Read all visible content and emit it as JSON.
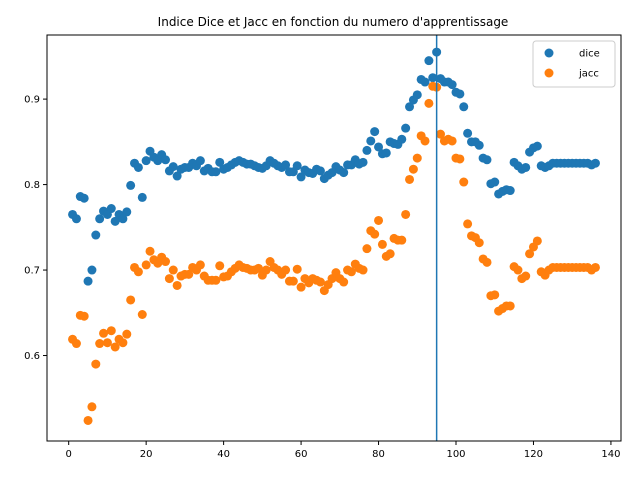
{
  "chart_data": {
    "type": "scatter",
    "title": "Indice Dice et Jacc en fonction du numero d'apprentissage",
    "xlabel": "",
    "ylabel": "",
    "xlim": [
      -5.6,
      142.6
    ],
    "ylim": [
      0.5,
      0.975
    ],
    "xticks": [
      0,
      20,
      40,
      60,
      80,
      100,
      120,
      140
    ],
    "yticks": [
      0.6,
      0.7,
      0.8,
      0.9
    ],
    "grid": false,
    "legend_position": "top-right",
    "vline_x": 95,
    "series": [
      {
        "name": "dice",
        "color": "#1f77b4",
        "x": [
          1,
          2,
          3,
          4,
          5,
          6,
          7,
          8,
          9,
          10,
          11,
          12,
          13,
          14,
          15,
          16,
          17,
          18,
          19,
          20,
          21,
          22,
          23,
          24,
          25,
          26,
          27,
          28,
          29,
          30,
          31,
          32,
          33,
          34,
          35,
          36,
          37,
          38,
          39,
          40,
          41,
          42,
          43,
          44,
          45,
          46,
          47,
          48,
          49,
          50,
          51,
          52,
          53,
          54,
          55,
          56,
          57,
          58,
          59,
          60,
          61,
          62,
          63,
          64,
          65,
          66,
          67,
          68,
          69,
          70,
          71,
          72,
          73,
          74,
          75,
          76,
          77,
          78,
          79,
          80,
          81,
          82,
          83,
          84,
          85,
          86,
          87,
          88,
          89,
          90,
          91,
          92,
          93,
          94,
          95,
          96,
          97,
          98,
          99,
          100,
          101,
          102,
          103,
          104,
          105,
          106,
          107,
          108,
          109,
          110,
          111,
          112,
          113,
          114,
          115,
          116,
          117,
          118,
          119,
          120,
          121,
          122,
          123,
          124,
          125,
          126,
          127,
          128,
          129,
          130,
          131,
          132,
          133,
          134,
          135,
          136
        ],
        "y": [
          0.765,
          0.76,
          0.786,
          0.784,
          0.687,
          0.7,
          0.741,
          0.76,
          0.769,
          0.765,
          0.772,
          0.757,
          0.765,
          0.76,
          0.768,
          0.799,
          0.825,
          0.82,
          0.785,
          0.828,
          0.839,
          0.832,
          0.828,
          0.835,
          0.829,
          0.816,
          0.821,
          0.81,
          0.818,
          0.82,
          0.82,
          0.825,
          0.822,
          0.828,
          0.816,
          0.819,
          0.815,
          0.815,
          0.826,
          0.818,
          0.82,
          0.823,
          0.826,
          0.828,
          0.826,
          0.824,
          0.824,
          0.822,
          0.82,
          0.819,
          0.822,
          0.828,
          0.825,
          0.822,
          0.82,
          0.823,
          0.815,
          0.815,
          0.822,
          0.809,
          0.817,
          0.814,
          0.813,
          0.818,
          0.816,
          0.807,
          0.811,
          0.814,
          0.821,
          0.817,
          0.814,
          0.823,
          0.823,
          0.829,
          0.824,
          0.826,
          0.84,
          0.851,
          0.862,
          0.844,
          0.836,
          0.837,
          0.85,
          0.848,
          0.847,
          0.853,
          0.866,
          0.891,
          0.899,
          0.905,
          0.923,
          0.92,
          0.945,
          0.925,
          0.955,
          0.924,
          0.92,
          0.92,
          0.917,
          0.908,
          0.906,
          0.891,
          0.86,
          0.85,
          0.85,
          0.846,
          0.831,
          0.829,
          0.801,
          0.803,
          0.789,
          0.792,
          0.794,
          0.793,
          0.826,
          0.822,
          0.818,
          0.82,
          0.838,
          0.843,
          0.845,
          0.822,
          0.82,
          0.822,
          0.825,
          0.825,
          0.825,
          0.825,
          0.825,
          0.825,
          0.825,
          0.825,
          0.825,
          0.825,
          0.823,
          0.825
        ]
      },
      {
        "name": "jacc",
        "color": "#ff7f0e",
        "x": [
          1,
          2,
          3,
          4,
          5,
          6,
          7,
          8,
          9,
          10,
          11,
          12,
          13,
          14,
          15,
          16,
          17,
          18,
          19,
          20,
          21,
          22,
          23,
          24,
          25,
          26,
          27,
          28,
          29,
          30,
          31,
          32,
          33,
          34,
          35,
          36,
          37,
          38,
          39,
          40,
          41,
          42,
          43,
          44,
          45,
          46,
          47,
          48,
          49,
          50,
          51,
          52,
          53,
          54,
          55,
          56,
          57,
          58,
          59,
          60,
          61,
          62,
          63,
          64,
          65,
          66,
          67,
          68,
          69,
          70,
          71,
          72,
          73,
          74,
          75,
          76,
          77,
          78,
          79,
          80,
          81,
          82,
          83,
          84,
          85,
          86,
          87,
          88,
          89,
          90,
          91,
          92,
          93,
          94,
          95,
          96,
          97,
          98,
          99,
          100,
          101,
          102,
          103,
          104,
          105,
          106,
          107,
          108,
          109,
          110,
          111,
          112,
          113,
          114,
          115,
          116,
          117,
          118,
          119,
          120,
          121,
          122,
          123,
          124,
          125,
          126,
          127,
          128,
          129,
          130,
          131,
          132,
          133,
          134,
          135,
          136
        ],
        "y": [
          0.619,
          0.614,
          0.647,
          0.646,
          0.524,
          0.54,
          0.59,
          0.614,
          0.626,
          0.615,
          0.629,
          0.61,
          0.619,
          0.615,
          0.625,
          0.665,
          0.703,
          0.698,
          0.648,
          0.706,
          0.722,
          0.712,
          0.708,
          0.715,
          0.71,
          0.69,
          0.7,
          0.682,
          0.693,
          0.695,
          0.695,
          0.703,
          0.7,
          0.706,
          0.693,
          0.688,
          0.688,
          0.688,
          0.705,
          0.692,
          0.693,
          0.698,
          0.702,
          0.706,
          0.703,
          0.702,
          0.7,
          0.7,
          0.702,
          0.694,
          0.7,
          0.71,
          0.703,
          0.7,
          0.695,
          0.7,
          0.687,
          0.687,
          0.701,
          0.68,
          0.69,
          0.685,
          0.69,
          0.688,
          0.686,
          0.676,
          0.683,
          0.69,
          0.697,
          0.69,
          0.686,
          0.7,
          0.698,
          0.707,
          0.702,
          0.7,
          0.725,
          0.746,
          0.742,
          0.758,
          0.73,
          0.716,
          0.719,
          0.737,
          0.735,
          0.735,
          0.765,
          0.806,
          0.818,
          0.831,
          0.857,
          0.851,
          0.895,
          0.915,
          0.914,
          0.859,
          0.851,
          0.853,
          0.851,
          0.831,
          0.83,
          0.803,
          0.754,
          0.74,
          0.738,
          0.732,
          0.713,
          0.709,
          0.67,
          0.671,
          0.652,
          0.655,
          0.658,
          0.658,
          0.704,
          0.7,
          0.69,
          0.693,
          0.719,
          0.727,
          0.734,
          0.698,
          0.694,
          0.7,
          0.703,
          0.703,
          0.703,
          0.703,
          0.703,
          0.703,
          0.703,
          0.703,
          0.703,
          0.703,
          0.7,
          0.703
        ]
      }
    ]
  }
}
